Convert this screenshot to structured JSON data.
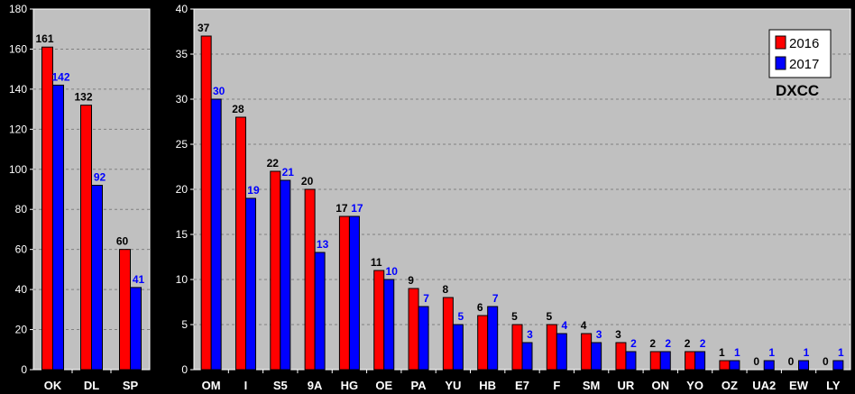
{
  "chart_data": [
    {
      "type": "bar",
      "categories": [
        "OK",
        "DL",
        "SP"
      ],
      "series": [
        {
          "name": "2016",
          "color": "#ff0000",
          "values": [
            161,
            132,
            60
          ]
        },
        {
          "name": "2017",
          "color": "#0000ff",
          "values": [
            142,
            92,
            41
          ]
        }
      ],
      "ylim": [
        0,
        180
      ],
      "yticks": [
        0,
        20,
        40,
        60,
        80,
        100,
        120,
        140,
        160,
        180
      ],
      "grid": true
    },
    {
      "type": "bar",
      "title": "DXCC",
      "categories": [
        "OM",
        "I",
        "S5",
        "9A",
        "HG",
        "OE",
        "PA",
        "YU",
        "HB",
        "E7",
        "F",
        "SM",
        "UR",
        "ON",
        "YO",
        "OZ",
        "UA2",
        "EW",
        "LY"
      ],
      "series": [
        {
          "name": "2016",
          "color": "#ff0000",
          "values": [
            37,
            28,
            22,
            20,
            17,
            11,
            9,
            8,
            6,
            5,
            5,
            4,
            3,
            2,
            2,
            1,
            0,
            0,
            0
          ]
        },
        {
          "name": "2017",
          "color": "#0000ff",
          "values": [
            30,
            19,
            21,
            13,
            17,
            10,
            7,
            5,
            7,
            3,
            4,
            3,
            2,
            2,
            2,
            1,
            1,
            1,
            1
          ]
        }
      ],
      "ylim": [
        0,
        40
      ],
      "yticks": [
        0,
        5,
        10,
        15,
        20,
        25,
        30,
        35,
        40
      ],
      "grid": true,
      "legend": "top-right"
    }
  ]
}
